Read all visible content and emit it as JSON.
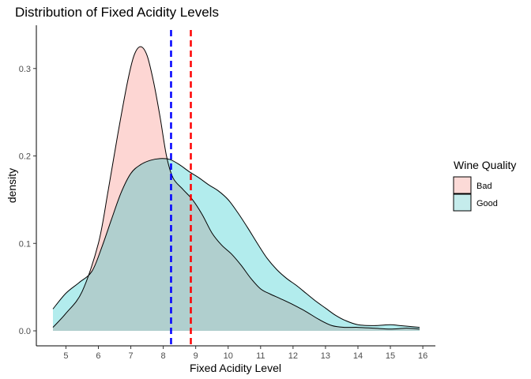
{
  "chart_data": {
    "type": "area",
    "title": "Distribution of Fixed Acidity Levels",
    "xlabel": "Fixed Acidity Level",
    "ylabel": "density",
    "xlim": [
      4.6,
      15.9
    ],
    "ylim": [
      0,
      0.335
    ],
    "x_ticks": [
      5,
      6,
      7,
      8,
      9,
      10,
      11,
      12,
      13,
      14,
      15,
      16
    ],
    "y_ticks": [
      0.0,
      0.1,
      0.2,
      0.3
    ],
    "y_tick_labels": [
      "0.0",
      "0.1",
      "0.2",
      "0.3"
    ],
    "grid": false,
    "legend": {
      "title": "Wine Quality",
      "position": "right"
    },
    "series": [
      {
        "name": "Bad",
        "color": "#F8766D",
        "fill": "#fcdad7",
        "points": [
          [
            4.6,
            0.004
          ],
          [
            5.0,
            0.02
          ],
          [
            5.5,
            0.045
          ],
          [
            6.0,
            0.1
          ],
          [
            6.3,
            0.16
          ],
          [
            6.6,
            0.225
          ],
          [
            6.9,
            0.285
          ],
          [
            7.1,
            0.315
          ],
          [
            7.3,
            0.325
          ],
          [
            7.5,
            0.315
          ],
          [
            7.7,
            0.285
          ],
          [
            7.9,
            0.245
          ],
          [
            8.1,
            0.2
          ],
          [
            8.3,
            0.175
          ],
          [
            8.6,
            0.162
          ],
          [
            8.9,
            0.15
          ],
          [
            9.2,
            0.133
          ],
          [
            9.5,
            0.112
          ],
          [
            9.8,
            0.098
          ],
          [
            10.1,
            0.088
          ],
          [
            10.4,
            0.075
          ],
          [
            10.7,
            0.06
          ],
          [
            11.0,
            0.048
          ],
          [
            11.3,
            0.042
          ],
          [
            11.6,
            0.037
          ],
          [
            12.0,
            0.03
          ],
          [
            12.4,
            0.022
          ],
          [
            12.8,
            0.013
          ],
          [
            13.2,
            0.006
          ],
          [
            13.6,
            0.004
          ],
          [
            14.0,
            0.004
          ],
          [
            14.5,
            0.003
          ],
          [
            15.0,
            0.002
          ],
          [
            15.5,
            0.003
          ],
          [
            15.9,
            0.002
          ]
        ]
      },
      {
        "name": "Good",
        "color": "#00BFC4",
        "fill": "#c5ecec",
        "points": [
          [
            4.6,
            0.025
          ],
          [
            5.0,
            0.043
          ],
          [
            5.4,
            0.055
          ],
          [
            5.8,
            0.068
          ],
          [
            6.1,
            0.095
          ],
          [
            6.4,
            0.127
          ],
          [
            6.7,
            0.158
          ],
          [
            7.0,
            0.18
          ],
          [
            7.3,
            0.19
          ],
          [
            7.6,
            0.195
          ],
          [
            7.9,
            0.197
          ],
          [
            8.2,
            0.196
          ],
          [
            8.5,
            0.19
          ],
          [
            8.8,
            0.182
          ],
          [
            9.1,
            0.175
          ],
          [
            9.4,
            0.167
          ],
          [
            9.7,
            0.16
          ],
          [
            10.0,
            0.15
          ],
          [
            10.3,
            0.135
          ],
          [
            10.6,
            0.118
          ],
          [
            10.9,
            0.1
          ],
          [
            11.2,
            0.083
          ],
          [
            11.5,
            0.07
          ],
          [
            11.8,
            0.06
          ],
          [
            12.1,
            0.052
          ],
          [
            12.4,
            0.043
          ],
          [
            12.7,
            0.034
          ],
          [
            13.0,
            0.026
          ],
          [
            13.3,
            0.018
          ],
          [
            13.6,
            0.012
          ],
          [
            14.0,
            0.007
          ],
          [
            14.5,
            0.006
          ],
          [
            15.0,
            0.007
          ],
          [
            15.3,
            0.006
          ],
          [
            15.9,
            0.004
          ]
        ]
      }
    ],
    "vlines": [
      {
        "x": 8.24,
        "color": "#0000ff",
        "style": "dashed"
      },
      {
        "x": 8.85,
        "color": "#ff0000",
        "style": "dashed"
      }
    ]
  }
}
